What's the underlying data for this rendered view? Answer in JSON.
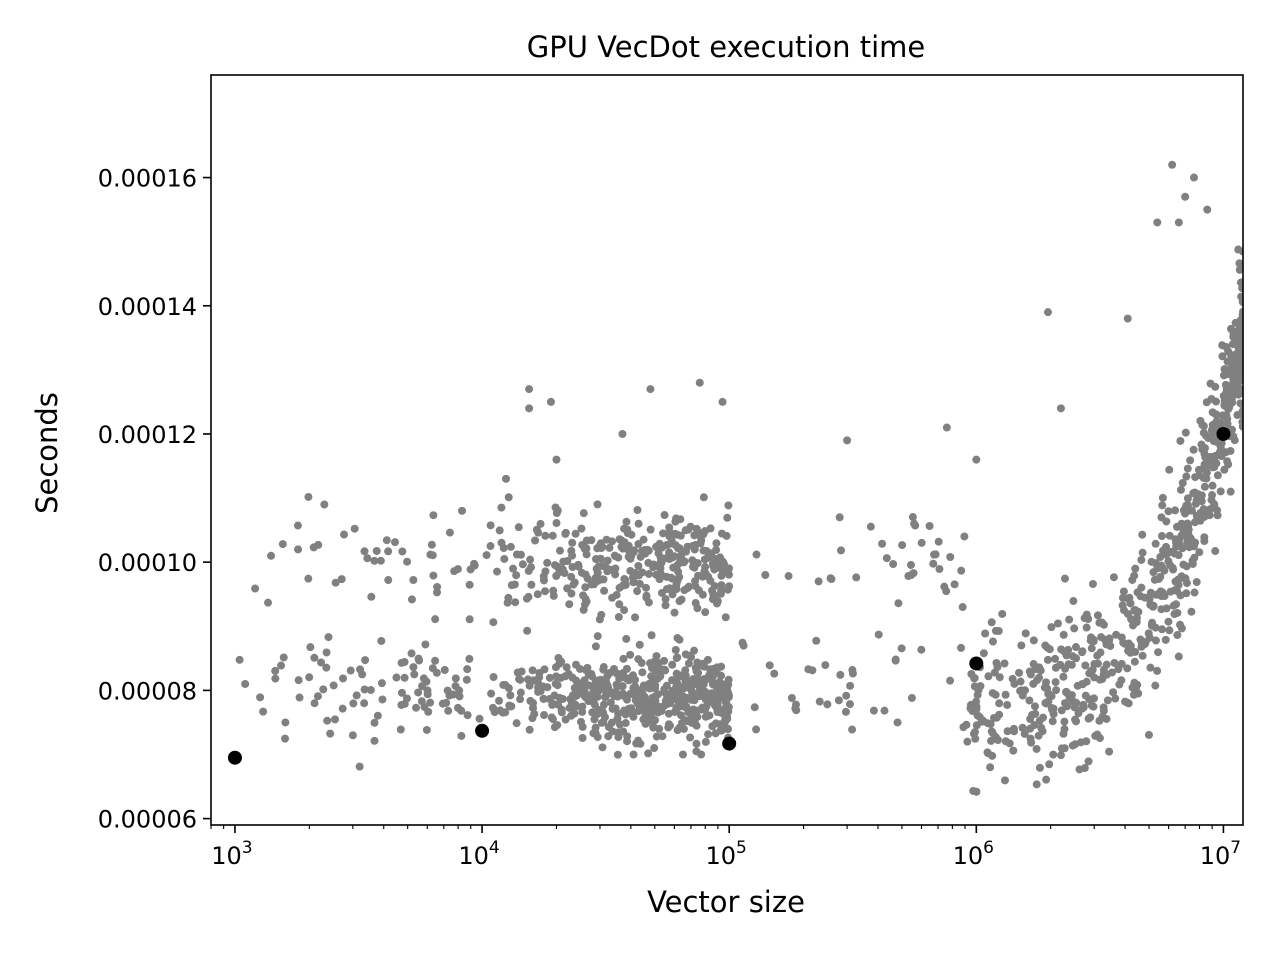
{
  "chart_data": {
    "type": "scatter",
    "title": "GPU VecDot execution time",
    "xlabel": "Vector size",
    "ylabel": "Seconds",
    "xscale": "log",
    "xlim": [
      800,
      12000000
    ],
    "ylim": [
      5.9e-05,
      0.000176
    ],
    "grid": false,
    "legend": "none",
    "x_ticks": [
      {
        "value": 1000,
        "base": "10",
        "exp": "3"
      },
      {
        "value": 10000,
        "base": "10",
        "exp": "4"
      },
      {
        "value": 100000,
        "base": "10",
        "exp": "5"
      },
      {
        "value": 1000000,
        "base": "10",
        "exp": "6"
      },
      {
        "value": 10000000,
        "base": "10",
        "exp": "7"
      }
    ],
    "y_ticks": [
      {
        "value": 6e-05,
        "label": "0.00006"
      },
      {
        "value": 8e-05,
        "label": "0.00008"
      },
      {
        "value": 0.0001,
        "label": "0.00010"
      },
      {
        "value": 0.00012,
        "label": "0.00012"
      },
      {
        "value": 0.00014,
        "label": "0.00014"
      },
      {
        "value": 0.00016,
        "label": "0.00016"
      }
    ],
    "series": [
      {
        "color": "#808080",
        "marker_size": 4,
        "clusters": [
          {
            "x_range": [
              1000,
              9000
            ],
            "y_mean": 8.1e-05,
            "y_sd": 4e-06,
            "count": 90
          },
          {
            "x_range": [
              1000,
              9000
            ],
            "y_mean": 0.0001,
            "y_sd": 4e-06,
            "count": 40
          },
          {
            "x_range": [
              9000,
              100000
            ],
            "y_mean": 7.9e-05,
            "y_sd": 3.5e-06,
            "count": 480
          },
          {
            "x_range": [
              9000,
              100000
            ],
            "y_mean": 0.0001,
            "y_sd": 4e-06,
            "count": 330
          },
          {
            "x_range": [
              100000,
              950000
            ],
            "y_mean": 8.2e-05,
            "y_sd": 5e-06,
            "count": 40
          },
          {
            "x_range": [
              100000,
              950000
            ],
            "y_mean": 0.0001,
            "y_sd": 3.5e-06,
            "count": 30
          },
          {
            "x_range": [
              950000,
              12000000
            ],
            "trend": "rising",
            "y_start": 7.8e-05,
            "y_end": 0.000135,
            "y_sd": 6e-06,
            "count": 700
          }
        ],
        "points": [
          [
            6200000,
            0.000162
          ],
          [
            7600000,
            0.00016
          ],
          [
            7000000,
            0.000157
          ],
          [
            8600000,
            0.000155
          ],
          [
            5400000,
            0.000153
          ],
          [
            6600000,
            0.000153
          ],
          [
            1950000,
            0.000139
          ],
          [
            4100000,
            0.000138
          ],
          [
            15500,
            0.000127
          ],
          [
            15500,
            0.000124
          ],
          [
            19000,
            0.000125
          ],
          [
            48000,
            0.000127
          ],
          [
            76000,
            0.000128
          ],
          [
            94000,
            0.000125
          ],
          [
            37000,
            0.00012
          ],
          [
            300000,
            0.000119
          ],
          [
            760000,
            0.000121
          ],
          [
            20000,
            0.000116
          ],
          [
            12500,
            0.000113
          ],
          [
            43000,
            0.000106
          ],
          [
            36000,
            9.6e-05
          ],
          [
            24000,
            8.4e-05
          ],
          [
            41000,
            7e-05
          ],
          [
            65000,
            7e-05
          ],
          [
            77000,
            7e-05
          ],
          [
            3000,
            7.3e-05
          ],
          [
            2300,
            0.000109
          ],
          [
            1100,
            8.1e-05
          ],
          [
            1600,
            7.5e-05
          ],
          [
            2100,
            7.8e-05
          ],
          [
            1400,
            0.000101
          ],
          [
            1800,
            0.000102
          ],
          [
            140000,
            9.8e-05
          ],
          [
            230000,
            9.7e-05
          ],
          [
            280000,
            0.000107
          ],
          [
            560000,
            0.000106
          ],
          [
            1000000,
            0.000116
          ],
          [
            2200000,
            0.000124
          ],
          [
            920000,
            7.2e-05
          ],
          [
            480000,
            7.5e-05
          ]
        ]
      },
      {
        "color": "#000000",
        "marker_size": 7,
        "points": [
          [
            1000,
            6.95e-05
          ],
          [
            10000,
            7.37e-05
          ],
          [
            100000,
            7.17e-05
          ],
          [
            1000000,
            8.42e-05
          ],
          [
            10000000,
            0.00012
          ]
        ]
      }
    ]
  }
}
